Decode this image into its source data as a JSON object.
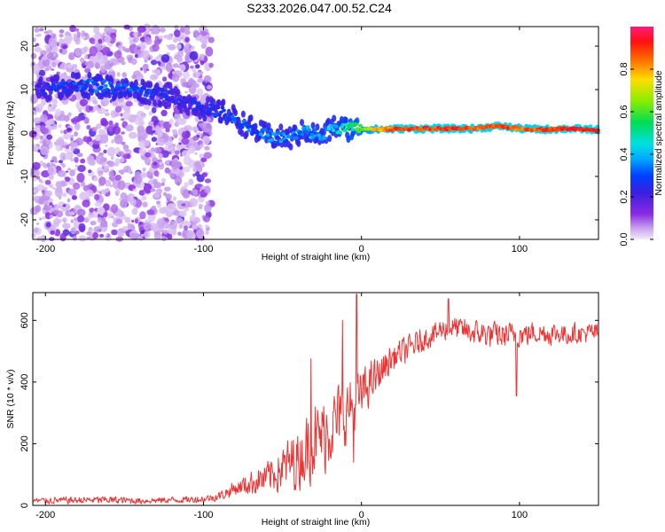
{
  "title": "S233.2026.047.00.52.C24",
  "chart_data": [
    {
      "type": "heatmap",
      "name": "spectrogram",
      "xlabel": "Height of straight line (km)",
      "ylabel": "Frequency (Hz)",
      "xlim": [
        -208,
        150
      ],
      "ylim": [
        -24.5,
        24.5
      ],
      "xticks": [
        -200,
        -100,
        0,
        100
      ],
      "yticks": [
        -20,
        -10,
        0,
        10,
        20
      ],
      "colorbar": {
        "label": "Normalized spectral amplitude",
        "range": [
          0,
          1
        ],
        "ticks": [
          0.0,
          0.2,
          0.4,
          0.6,
          0.8
        ]
      },
      "noise_region": {
        "x_from": -208,
        "x_to": -95
      },
      "ridge": [
        {
          "x": -205,
          "f": 10.0,
          "a": 0.22
        },
        {
          "x": -195,
          "f": 10.5,
          "a": 0.25
        },
        {
          "x": -180,
          "f": 11.0,
          "a": 0.28
        },
        {
          "x": -165,
          "f": 10.8,
          "a": 0.32
        },
        {
          "x": -150,
          "f": 10.0,
          "a": 0.3
        },
        {
          "x": -135,
          "f": 9.6,
          "a": 0.28
        },
        {
          "x": -120,
          "f": 8.4,
          "a": 0.22
        },
        {
          "x": -105,
          "f": 6.5,
          "a": 0.24
        },
        {
          "x": -95,
          "f": 5.2,
          "a": 0.26
        },
        {
          "x": -85,
          "f": 4.5,
          "a": 0.3
        },
        {
          "x": -75,
          "f": 2.2,
          "a": 0.3
        },
        {
          "x": -65,
          "f": 0.0,
          "a": 0.32
        },
        {
          "x": -55,
          "f": -1.0,
          "a": 0.34
        },
        {
          "x": -45,
          "f": -1.2,
          "a": 0.34
        },
        {
          "x": -35,
          "f": 0.5,
          "a": 0.36
        },
        {
          "x": -25,
          "f": -1.0,
          "a": 0.38
        },
        {
          "x": -18,
          "f": 1.5,
          "a": 0.4
        },
        {
          "x": -10,
          "f": 1.0,
          "a": 0.48
        },
        {
          "x": 0,
          "f": 1.0,
          "a": 0.62
        },
        {
          "x": 10,
          "f": 0.8,
          "a": 0.78
        },
        {
          "x": 25,
          "f": 1.0,
          "a": 0.9
        },
        {
          "x": 40,
          "f": 1.0,
          "a": 0.88
        },
        {
          "x": 55,
          "f": 1.0,
          "a": 0.9
        },
        {
          "x": 70,
          "f": 1.0,
          "a": 0.86
        },
        {
          "x": 88,
          "f": 1.6,
          "a": 0.9
        },
        {
          "x": 100,
          "f": 1.0,
          "a": 0.85
        },
        {
          "x": 115,
          "f": 0.8,
          "a": 0.88
        },
        {
          "x": 130,
          "f": 1.0,
          "a": 0.92
        },
        {
          "x": 148,
          "f": 0.8,
          "a": 0.9
        }
      ]
    },
    {
      "type": "line",
      "name": "snr",
      "xlabel": "Height of straight line (km)",
      "ylabel": "SNR (10 * v/v)",
      "xlim": [
        -208,
        150
      ],
      "ylim": [
        0,
        690
      ],
      "xticks": [
        -200,
        -100,
        0,
        100
      ],
      "yticks": [
        0,
        200,
        400,
        600
      ],
      "color": "#ee3333",
      "envelope": [
        {
          "x": -208,
          "mean": 15,
          "spread": 12
        },
        {
          "x": -160,
          "mean": 18,
          "spread": 15
        },
        {
          "x": -140,
          "mean": 15,
          "spread": 12
        },
        {
          "x": -100,
          "mean": 20,
          "spread": 14
        },
        {
          "x": -90,
          "mean": 30,
          "spread": 18
        },
        {
          "x": -80,
          "mean": 55,
          "spread": 30
        },
        {
          "x": -60,
          "mean": 90,
          "spread": 60
        },
        {
          "x": -40,
          "mean": 150,
          "spread": 120
        },
        {
          "x": -25,
          "mean": 230,
          "spread": 150
        },
        {
          "x": -10,
          "mean": 300,
          "spread": 130
        },
        {
          "x": 0,
          "mean": 360,
          "spread": 90
        },
        {
          "x": 10,
          "mean": 420,
          "spread": 70
        },
        {
          "x": 20,
          "mean": 480,
          "spread": 55
        },
        {
          "x": 40,
          "mean": 540,
          "spread": 45
        },
        {
          "x": 55,
          "mean": 580,
          "spread": 45
        },
        {
          "x": 70,
          "mean": 560,
          "spread": 50
        },
        {
          "x": 90,
          "mean": 550,
          "spread": 50
        },
        {
          "x": 110,
          "mean": 560,
          "spread": 45
        },
        {
          "x": 130,
          "mean": 555,
          "spread": 40
        },
        {
          "x": 150,
          "mean": 560,
          "spread": 40
        }
      ],
      "spikes": [
        {
          "x": -3,
          "value": 685
        },
        {
          "x": -12,
          "value": 600
        },
        {
          "x": -32,
          "value": 475
        },
        {
          "x": 98,
          "value": 355
        },
        {
          "x": -5,
          "value": 140
        },
        {
          "x": 55,
          "value": 670
        }
      ]
    }
  ]
}
